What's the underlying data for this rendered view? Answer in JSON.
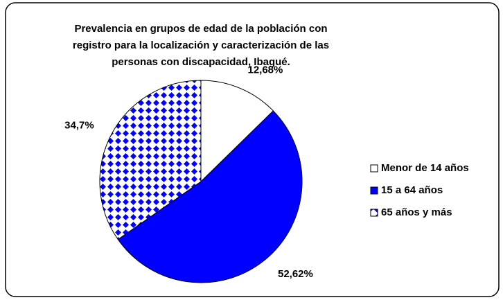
{
  "chart_data": {
    "type": "pie",
    "title": [
      "Prevalencia en grupos de edad de la población con",
      "registro para la localización y caracterización de las",
      "personas con discapacidad, Ibagué."
    ],
    "categories": [
      "Menor de 14 años",
      "15 a 64 años",
      "65 años y más"
    ],
    "values": [
      12.68,
      52.62,
      34.7
    ],
    "value_labels": [
      "12,68%",
      "52,62%",
      "34,7%"
    ],
    "colors": [
      "#ffffff",
      "#0000ff",
      "#0000ff"
    ],
    "patterns": [
      null,
      null,
      "diamond"
    ],
    "legend": "right"
  }
}
